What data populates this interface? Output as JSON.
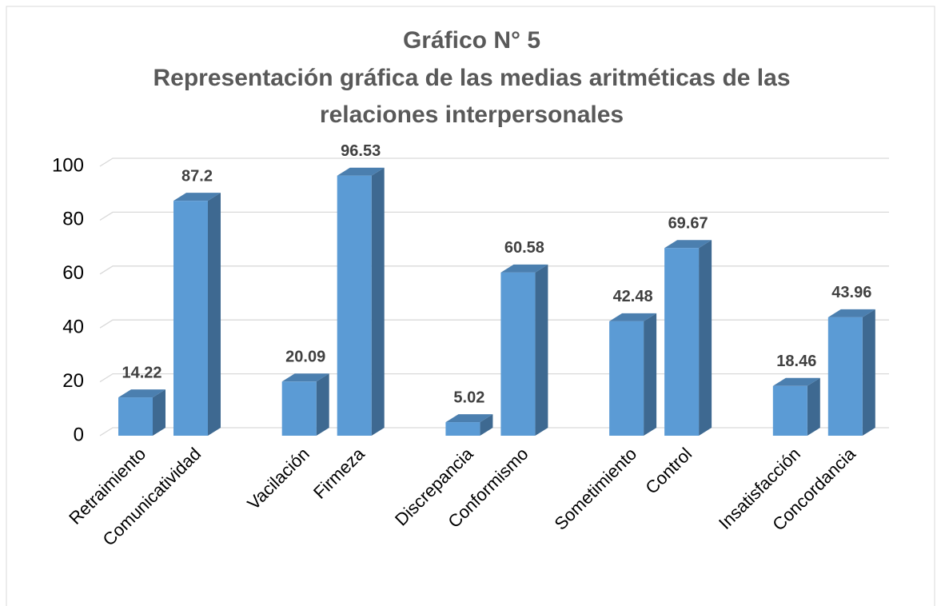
{
  "chart_data": {
    "type": "bar3d",
    "title": [
      "Gráfico N° 5",
      "Representación gráfica de las medias aritméticas de las",
      "relaciones interpersonales"
    ],
    "categories": [
      "Retraimiento",
      "Comunicatividad",
      "Vacilación",
      "Firmeza",
      "Discrepancia",
      "Conformismo",
      "Sometimiento",
      "Control",
      "Insatisfacción",
      "Concordancia"
    ],
    "values": [
      14.22,
      87.2,
      20.09,
      96.53,
      5.02,
      60.58,
      42.48,
      69.67,
      18.46,
      43.96
    ],
    "color": "#5b9bd5",
    "ylim": [
      0,
      100
    ],
    "yticks": [
      0,
      20,
      40,
      60,
      80,
      100
    ],
    "grid": true
  }
}
